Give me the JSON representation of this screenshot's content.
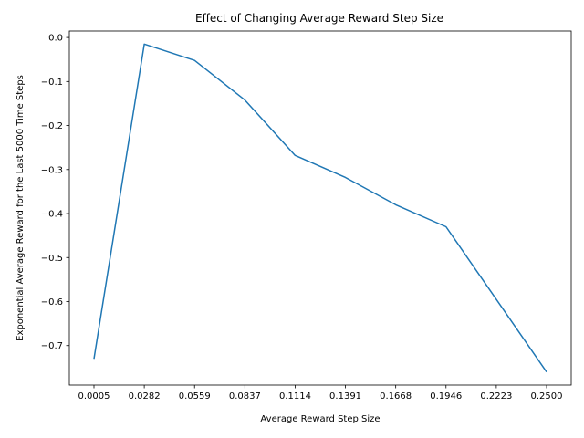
{
  "chart_data": {
    "type": "line",
    "title": "Effect of Changing Average Reward Step Size",
    "xlabel": "Average Reward Step Size",
    "ylabel": "Exponential Average Reward for the Last 5000 Time Steps",
    "categories": [
      "0.0005",
      "0.0282",
      "0.0559",
      "0.0837",
      "0.1114",
      "0.1391",
      "0.1668",
      "0.1946",
      "0.2223",
      "0.2500"
    ],
    "series": [
      {
        "values": [
          -0.73,
          -0.015,
          -0.052,
          -0.142,
          -0.268,
          -0.318,
          -0.38,
          -0.43,
          -0.595,
          -0.76
        ],
        "color": "#1f77b4"
      }
    ],
    "yticks": [
      "0.0",
      "−0.1",
      "−0.2",
      "−0.3",
      "−0.4",
      "−0.5",
      "−0.6",
      "−0.7"
    ],
    "ylim": [
      -0.7897,
      0.0147
    ],
    "grid": false,
    "legend": "none"
  }
}
